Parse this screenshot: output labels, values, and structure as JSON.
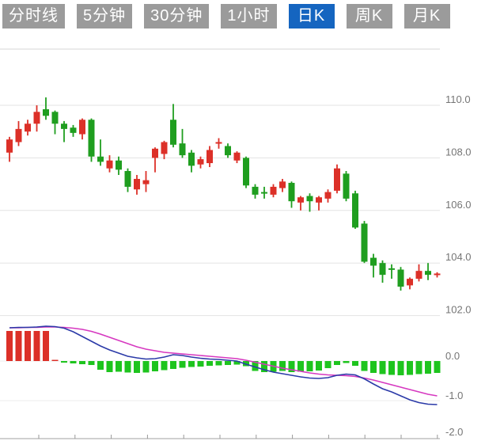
{
  "tabs": {
    "items": [
      {
        "id": "tab-time-line",
        "label": "分时线",
        "active": false
      },
      {
        "id": "tab-5min",
        "label": "5分钟",
        "active": false
      },
      {
        "id": "tab-30min",
        "label": "30分钟",
        "active": false
      },
      {
        "id": "tab-1hour",
        "label": "1小时",
        "active": false
      },
      {
        "id": "tab-daily-k",
        "label": "日K",
        "active": true
      },
      {
        "id": "tab-weekly-k",
        "label": "周K",
        "active": false
      },
      {
        "id": "tab-monthly-k",
        "label": "月K",
        "active": false
      }
    ],
    "active_bg": "#1565c0",
    "inactive_bg": "#9b9b9b",
    "text_color": "#ffffff"
  },
  "chart_data": {
    "type": "candlestick+macd",
    "title": "",
    "legend_position": "none",
    "grid": true,
    "price_axis": {
      "side": "right",
      "ticks": [
        {
          "value": 110.0,
          "label": "110.0"
        },
        {
          "value": 108.0,
          "label": "108.0"
        },
        {
          "value": 106.0,
          "label": "106.0"
        },
        {
          "value": 104.0,
          "label": "104.0"
        },
        {
          "value": 102.0,
          "label": "102.0"
        }
      ]
    },
    "indicator_axis": {
      "side": "right",
      "ticks": [
        {
          "value": 0.0,
          "label": "0.0"
        },
        {
          "value": -1.0,
          "label": "-1.0"
        },
        {
          "value": -2.0,
          "label": "-2.0"
        }
      ]
    },
    "colors": {
      "up": "#dc3028",
      "down": "#1f9e1f",
      "hist_up": "#dc3028",
      "hist_down": "#1ec41e",
      "dif_line": "#2b3aa8",
      "dea_line": "#d638c0",
      "grid": "#e3e3e3",
      "axis_line": "#b5b5b5",
      "tick": "#999999",
      "label": "#757575"
    },
    "candles_ohlc": [
      [
        108.2,
        108.8,
        107.85,
        108.7
      ],
      [
        108.6,
        109.4,
        108.45,
        109.1
      ],
      [
        109.0,
        109.45,
        108.85,
        109.3
      ],
      [
        109.3,
        110.0,
        109.0,
        109.75
      ],
      [
        109.85,
        110.3,
        109.45,
        109.6
      ],
      [
        109.75,
        109.8,
        108.9,
        109.3
      ],
      [
        109.3,
        109.4,
        108.6,
        109.1
      ],
      [
        109.15,
        109.25,
        108.8,
        108.95
      ],
      [
        108.9,
        109.5,
        108.7,
        109.45
      ],
      [
        109.45,
        109.5,
        107.85,
        108.05
      ],
      [
        108.05,
        108.7,
        107.7,
        107.85
      ],
      [
        107.6,
        108.1,
        107.45,
        107.9
      ],
      [
        107.9,
        108.05,
        107.35,
        107.55
      ],
      [
        107.5,
        107.6,
        106.7,
        106.9
      ],
      [
        106.8,
        107.35,
        106.6,
        107.2
      ],
      [
        107.0,
        107.5,
        106.7,
        107.15
      ],
      [
        108.0,
        108.4,
        107.45,
        108.35
      ],
      [
        108.15,
        108.65,
        107.95,
        108.6
      ],
      [
        109.45,
        110.05,
        108.4,
        108.5
      ],
      [
        108.55,
        109.1,
        108.0,
        108.1
      ],
      [
        108.2,
        108.3,
        107.45,
        107.7
      ],
      [
        107.75,
        108.05,
        107.6,
        107.95
      ],
      [
        107.8,
        108.45,
        107.65,
        108.3
      ],
      [
        108.55,
        108.75,
        108.35,
        108.6
      ],
      [
        108.45,
        108.55,
        108.0,
        108.1
      ],
      [
        107.9,
        108.25,
        107.8,
        108.2
      ],
      [
        108.0,
        108.05,
        106.85,
        106.95
      ],
      [
        106.9,
        107.0,
        106.45,
        106.6
      ],
      [
        106.7,
        106.9,
        106.45,
        106.65
      ],
      [
        106.6,
        107.0,
        106.5,
        106.9
      ],
      [
        106.85,
        107.2,
        106.7,
        107.1
      ],
      [
        107.05,
        107.1,
        106.1,
        106.35
      ],
      [
        106.3,
        106.55,
        106.0,
        106.5
      ],
      [
        106.55,
        106.65,
        105.95,
        106.35
      ],
      [
        106.3,
        106.55,
        106.0,
        106.5
      ],
      [
        106.45,
        106.8,
        106.3,
        106.7
      ],
      [
        106.75,
        107.75,
        106.65,
        107.6
      ],
      [
        107.4,
        107.5,
        106.35,
        106.45
      ],
      [
        106.65,
        106.75,
        105.3,
        105.35
      ],
      [
        105.5,
        105.6,
        104.0,
        104.05
      ],
      [
        104.2,
        104.35,
        103.45,
        103.9
      ],
      [
        104.0,
        104.1,
        103.25,
        103.55
      ],
      [
        103.8,
        103.95,
        103.4,
        103.75
      ],
      [
        103.75,
        103.85,
        102.95,
        103.1
      ],
      [
        103.15,
        103.45,
        103.0,
        103.4
      ],
      [
        103.4,
        103.95,
        103.3,
        103.7
      ],
      [
        103.7,
        104.0,
        103.35,
        103.55
      ],
      [
        103.55,
        103.65,
        103.45,
        103.6
      ]
    ],
    "macd": {
      "histogram": [
        0.76,
        0.76,
        0.76,
        0.76,
        0.76,
        0.03,
        -0.04,
        -0.06,
        -0.08,
        -0.1,
        -0.22,
        -0.28,
        -0.27,
        -0.29,
        -0.3,
        -0.29,
        -0.26,
        -0.23,
        -0.2,
        -0.17,
        -0.15,
        -0.14,
        -0.12,
        -0.11,
        -0.1,
        -0.09,
        -0.13,
        -0.25,
        -0.28,
        -0.27,
        -0.25,
        -0.28,
        -0.27,
        -0.26,
        -0.24,
        -0.18,
        -0.1,
        -0.05,
        -0.12,
        -0.25,
        -0.3,
        -0.33,
        -0.35,
        -0.36,
        -0.35,
        -0.33,
        -0.32,
        -0.3
      ],
      "dif": [
        0.84,
        0.85,
        0.85,
        0.86,
        0.88,
        0.87,
        0.83,
        0.74,
        0.62,
        0.5,
        0.38,
        0.28,
        0.2,
        0.12,
        0.08,
        0.05,
        0.06,
        0.1,
        0.16,
        0.14,
        0.1,
        0.07,
        0.05,
        0.04,
        0.02,
        0.0,
        -0.08,
        -0.15,
        -0.22,
        -0.28,
        -0.32,
        -0.36,
        -0.4,
        -0.43,
        -0.44,
        -0.42,
        -0.36,
        -0.33,
        -0.35,
        -0.45,
        -0.58,
        -0.7,
        -0.78,
        -0.88,
        -0.98,
        -1.05,
        -1.09,
        -1.1
      ],
      "dea": [
        0.84,
        0.84,
        0.85,
        0.85,
        0.86,
        0.86,
        0.85,
        0.83,
        0.8,
        0.75,
        0.68,
        0.6,
        0.52,
        0.44,
        0.36,
        0.3,
        0.26,
        0.22,
        0.2,
        0.18,
        0.16,
        0.14,
        0.12,
        0.1,
        0.08,
        0.06,
        0.02,
        -0.03,
        -0.08,
        -0.13,
        -0.18,
        -0.22,
        -0.26,
        -0.3,
        -0.33,
        -0.35,
        -0.36,
        -0.37,
        -0.39,
        -0.43,
        -0.48,
        -0.54,
        -0.6,
        -0.66,
        -0.72,
        -0.78,
        -0.84,
        -0.88
      ]
    }
  }
}
